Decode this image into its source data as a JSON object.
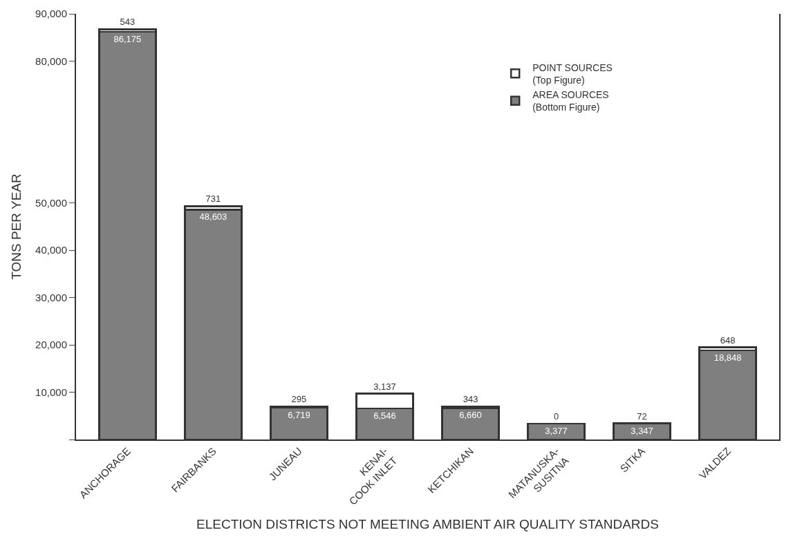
{
  "chart_data": {
    "type": "bar",
    "stacked": true,
    "xlabel": "ELECTION DISTRICTS NOT MEETING AMBIENT AIR QUALITY STANDARDS",
    "ylabel": "TONS PER YEAR",
    "categories": [
      "ANCHORAGE",
      "FAIRBANKS",
      "JUNEAU",
      "KENAI-\nCOOK INLET",
      "KETCHIKAN",
      "MATANUSKA-\nSUSITNA",
      "SITKA",
      "VALDEZ"
    ],
    "series": [
      {
        "name": "AREA SOURCES\n(Bottom Figure)",
        "color": "#7f7f7f",
        "values": [
          86175,
          48603,
          6719,
          6546,
          6660,
          3377,
          3347,
          18848
        ],
        "value_labels": [
          "86,175",
          "48,603",
          "6,719",
          "6,546",
          "6,660",
          "3,377",
          "3,347",
          "18,848"
        ]
      },
      {
        "name": "POINT SOURCES\n(Top Figure)",
        "color": "#ffffff",
        "values": [
          543,
          731,
          295,
          3137,
          343,
          0,
          72,
          648
        ],
        "value_labels": [
          "543",
          "731",
          "295",
          "3,137",
          "343",
          "0",
          "72",
          "648"
        ]
      }
    ],
    "ylim": [
      0,
      90000
    ],
    "yticks": [
      {
        "value": 0,
        "label": null
      },
      {
        "value": 10000,
        "label": "10,000"
      },
      {
        "value": 20000,
        "label": "20,000"
      },
      {
        "value": 30000,
        "label": "30,000"
      },
      {
        "value": 40000,
        "label": "40,000"
      },
      {
        "value": 50000,
        "label": "50,000"
      },
      {
        "value": 80000,
        "label": "80,000"
      },
      {
        "value": 90000,
        "label": "90,000"
      }
    ],
    "legend": "top right"
  }
}
